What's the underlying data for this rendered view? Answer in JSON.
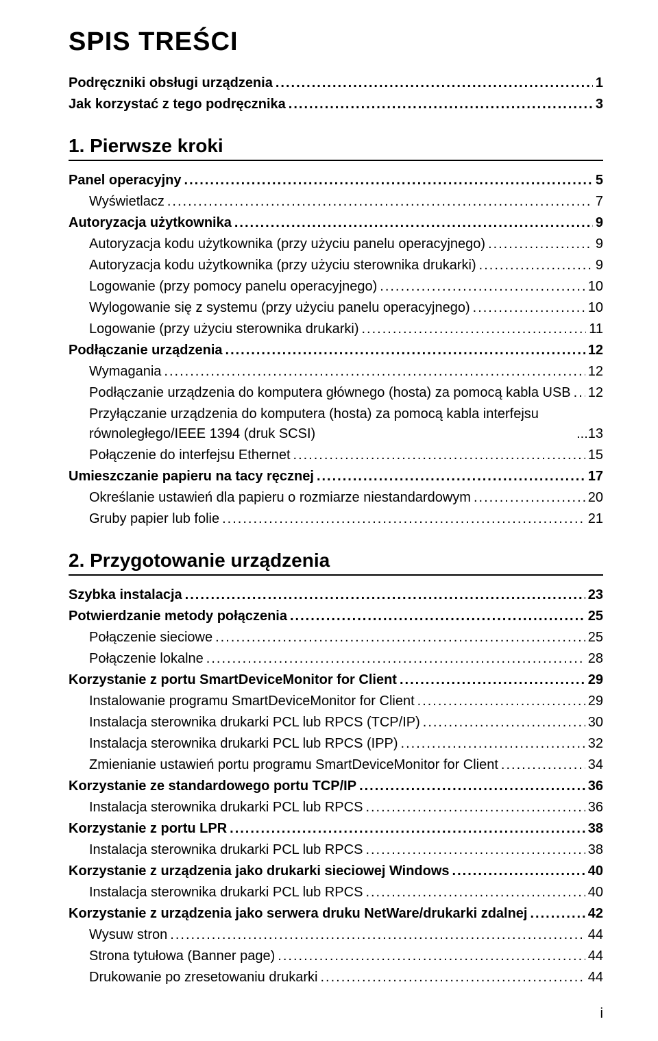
{
  "main_title": "SPIS TREŚCI",
  "page_number": "i",
  "fonts": {
    "title_size_pt": 28,
    "section_size_pt": 20,
    "body_size_pt": 15,
    "family": "Arial"
  },
  "colors": {
    "text": "#000000",
    "background": "#ffffff",
    "rule": "#000000"
  },
  "pre_entries": [
    {
      "label": "Podręczniki obsługi urządzenia",
      "page": "1",
      "level": 0
    },
    {
      "label": "Jak korzystać z tego podręcznika",
      "page": "3",
      "level": 0
    }
  ],
  "sections": [
    {
      "heading": "1. Pierwsze kroki",
      "entries": [
        {
          "label": "Panel operacyjny",
          "page": "5",
          "level": 0
        },
        {
          "label": "Wyświetlacz",
          "page": "7",
          "level": 1
        },
        {
          "label": "Autoryzacja użytkownika",
          "page": "9",
          "level": 0
        },
        {
          "label": "Autoryzacja kodu użytkownika (przy użyciu panelu operacyjnego)",
          "page": "9",
          "level": 1
        },
        {
          "label": "Autoryzacja kodu użytkownika (przy użyciu sterownika drukarki)",
          "page": "9",
          "level": 1
        },
        {
          "label": "Logowanie (przy pomocy panelu operacyjnego)",
          "page": "10",
          "level": 1
        },
        {
          "label": "Wylogowanie się z systemu (przy użyciu panelu operacyjnego)",
          "page": "10",
          "level": 1
        },
        {
          "label": "Logowanie (przy użyciu sterownika drukarki)",
          "page": "11",
          "level": 1
        },
        {
          "label": "Podłączanie urządzenia",
          "page": "12",
          "level": 0
        },
        {
          "label": "Wymagania",
          "page": "12",
          "level": 1
        },
        {
          "label": "Podłączanie urządzenia do komputera głównego (hosta) za pomocą kabla USB",
          "page": "12",
          "level": 1
        },
        {
          "label": "Przyłączanie urządzenia do komputera (hosta) za pomocą kabla interfejsu równoległego/IEEE 1394 (druk SCSI)",
          "page": "13",
          "level": 1,
          "wrap": true
        },
        {
          "label": "Połączenie do interfejsu Ethernet",
          "page": "15",
          "level": 1
        },
        {
          "label": "Umieszczanie papieru na tacy ręcznej",
          "page": "17",
          "level": 0
        },
        {
          "label": "Określanie ustawień dla papieru o rozmiarze niestandardowym",
          "page": "20",
          "level": 1
        },
        {
          "label": "Gruby papier lub folie",
          "page": "21",
          "level": 1
        }
      ]
    },
    {
      "heading": "2. Przygotowanie urządzenia",
      "entries": [
        {
          "label": "Szybka instalacja",
          "page": "23",
          "level": 0
        },
        {
          "label": "Potwierdzanie metody połączenia",
          "page": "25",
          "level": 0
        },
        {
          "label": "Połączenie sieciowe",
          "page": "25",
          "level": 1
        },
        {
          "label": "Połączenie lokalne",
          "page": "28",
          "level": 1
        },
        {
          "label": "Korzystanie z portu SmartDeviceMonitor for Client",
          "page": "29",
          "level": 0
        },
        {
          "label": "Instalowanie programu SmartDeviceMonitor for Client",
          "page": "29",
          "level": 1
        },
        {
          "label": "Instalacja sterownika drukarki PCL lub RPCS (TCP/IP)",
          "page": "30",
          "level": 1
        },
        {
          "label": "Instalacja sterownika drukarki PCL lub RPCS (IPP)",
          "page": "32",
          "level": 1
        },
        {
          "label": "Zmienianie ustawień portu programu SmartDeviceMonitor for Client",
          "page": "34",
          "level": 1
        },
        {
          "label": "Korzystanie ze standardowego portu TCP/IP",
          "page": "36",
          "level": 0
        },
        {
          "label": "Instalacja sterownika drukarki PCL lub RPCS",
          "page": "36",
          "level": 1
        },
        {
          "label": "Korzystanie z portu LPR",
          "page": "38",
          "level": 0
        },
        {
          "label": "Instalacja sterownika drukarki PCL lub RPCS",
          "page": "38",
          "level": 1
        },
        {
          "label": "Korzystanie z urządzenia jako drukarki sieciowej Windows",
          "page": "40",
          "level": 0
        },
        {
          "label": "Instalacja sterownika drukarki PCL lub RPCS",
          "page": "40",
          "level": 1
        },
        {
          "label": "Korzystanie z urządzenia jako serwera druku NetWare/drukarki zdalnej",
          "page": "42",
          "level": 0
        },
        {
          "label": "Wysuw stron",
          "page": "44",
          "level": 1
        },
        {
          "label": "Strona tytułowa (Banner page)",
          "page": "44",
          "level": 1
        },
        {
          "label": "Drukowanie po zresetowaniu drukarki",
          "page": "44",
          "level": 1
        }
      ]
    }
  ]
}
